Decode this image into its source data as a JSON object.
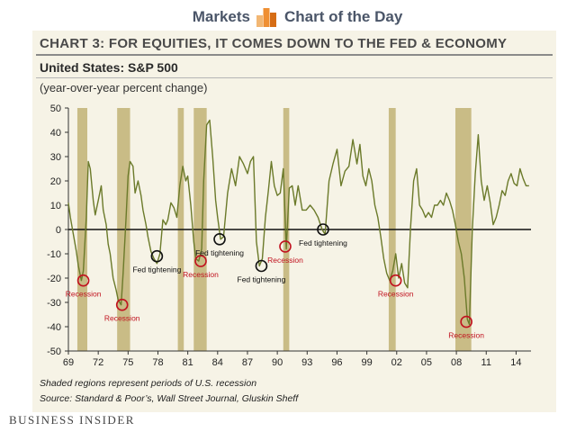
{
  "header": {
    "left_label": "Markets",
    "right_label": "Chart of the Day",
    "logo_icon": "bar-chart-logo-icon",
    "logo_colors": [
      "#f2b774",
      "#ef8f33",
      "#d66d15"
    ]
  },
  "footer": {
    "brand": "BUSINESS INSIDER"
  },
  "chart_data": {
    "type": "line",
    "title": "CHART 3: FOR EQUITIES, IT COMES DOWN TO THE FED & ECONOMY",
    "subtitle": "United States: S&P 500",
    "unit_note": "(year-over-year percent change)",
    "xlabel": "",
    "ylabel": "",
    "xlim": [
      1969,
      2015.5
    ],
    "ylim": [
      -50,
      50
    ],
    "grid": false,
    "zero_line": true,
    "x_ticks": [
      1969,
      1972,
      1975,
      1978,
      1981,
      1984,
      1987,
      1990,
      1993,
      1996,
      1999,
      2002,
      2005,
      2008,
      2011,
      2014
    ],
    "x_tick_labels": [
      "69",
      "72",
      "75",
      "78",
      "81",
      "84",
      "87",
      "90",
      "93",
      "96",
      "99",
      "02",
      "05",
      "08",
      "11",
      "14"
    ],
    "y_ticks": [
      50,
      40,
      30,
      20,
      10,
      0,
      -10,
      -20,
      -30,
      -40,
      -50
    ],
    "y_tick_labels": [
      "50",
      "40",
      "30",
      "20",
      "10",
      "0",
      "-10",
      "-20",
      "-30",
      "-40",
      "-50"
    ],
    "recessions": [
      [
        1969.9,
        1970.9
      ],
      [
        1973.9,
        1975.2
      ],
      [
        1980.0,
        1980.6
      ],
      [
        1981.6,
        1982.9
      ],
      [
        1990.6,
        1991.2
      ],
      [
        2001.2,
        2001.9
      ],
      [
        2007.9,
        2009.5
      ]
    ],
    "series": [
      {
        "color": "#6b7a2a",
        "x": [
          1969.0,
          1969.2,
          1969.5,
          1969.8,
          1970.0,
          1970.3,
          1970.5,
          1970.8,
          1971.0,
          1971.2,
          1971.5,
          1971.7,
          1972.0,
          1972.3,
          1972.5,
          1972.8,
          1973.0,
          1973.2,
          1973.5,
          1973.8,
          1974.0,
          1974.3,
          1974.5,
          1974.8,
          1975.0,
          1975.2,
          1975.5,
          1975.7,
          1976.0,
          1976.3,
          1976.5,
          1976.8,
          1977.0,
          1977.3,
          1977.6,
          1977.9,
          1978.2,
          1978.5,
          1978.8,
          1979.0,
          1979.3,
          1979.6,
          1979.9,
          1980.2,
          1980.5,
          1980.8,
          1981.0,
          1981.3,
          1981.6,
          1981.8,
          1982.1,
          1982.4,
          1982.6,
          1982.9,
          1983.2,
          1983.5,
          1983.8,
          1984.0,
          1984.3,
          1984.6,
          1985.0,
          1985.4,
          1985.8,
          1986.2,
          1986.6,
          1987.0,
          1987.3,
          1987.6,
          1987.9,
          1988.2,
          1988.5,
          1988.8,
          1989.1,
          1989.4,
          1989.7,
          1990.0,
          1990.3,
          1990.6,
          1990.9,
          1991.2,
          1991.5,
          1991.8,
          1992.1,
          1992.5,
          1992.9,
          1993.3,
          1993.7,
          1994.1,
          1994.5,
          1994.8,
          1995.2,
          1995.6,
          1996.0,
          1996.4,
          1996.8,
          1997.2,
          1997.6,
          1998.0,
          1998.3,
          1998.6,
          1998.9,
          1999.2,
          1999.5,
          1999.8,
          2000.1,
          2000.4,
          2000.7,
          2001.0,
          2001.3,
          2001.6,
          2001.9,
          2002.2,
          2002.5,
          2002.8,
          2003.1,
          2003.4,
          2003.7,
          2004.0,
          2004.3,
          2004.6,
          2004.9,
          2005.2,
          2005.5,
          2005.8,
          2006.1,
          2006.4,
          2006.7,
          2007.0,
          2007.3,
          2007.6,
          2007.9,
          2008.2,
          2008.5,
          2008.8,
          2009.1,
          2009.3,
          2009.6,
          2009.9,
          2010.2,
          2010.5,
          2010.8,
          2011.1,
          2011.4,
          2011.7,
          2012.0,
          2012.3,
          2012.6,
          2012.9,
          2013.2,
          2013.5,
          2013.8,
          2014.1,
          2014.4,
          2014.7,
          2015.0,
          2015.3
        ],
        "y": [
          11,
          5,
          -2,
          -9,
          -15,
          -21,
          -17,
          5,
          28,
          25,
          12,
          6,
          12,
          18,
          8,
          2,
          -6,
          -10,
          -20,
          -25,
          -29,
          -31,
          -18,
          5,
          22,
          28,
          26,
          15,
          20,
          14,
          8,
          2,
          -3,
          -9,
          -12,
          -14,
          -10,
          4,
          2,
          4,
          11,
          9,
          5,
          18,
          26,
          20,
          22,
          10,
          -5,
          -12,
          -13,
          -8,
          20,
          43,
          45,
          30,
          12,
          5,
          -4,
          -3,
          15,
          25,
          18,
          30,
          27,
          23,
          28,
          30,
          -5,
          -15,
          -12,
          5,
          16,
          28,
          18,
          14,
          15,
          25,
          -8,
          17,
          18,
          10,
          18,
          8,
          8,
          10,
          8,
          5,
          0,
          -2,
          20,
          27,
          33,
          18,
          24,
          26,
          37,
          27,
          35,
          22,
          18,
          25,
          20,
          10,
          5,
          -3,
          -12,
          -18,
          -21,
          -17,
          -10,
          -20,
          -14,
          -22,
          -24,
          1,
          20,
          25,
          10,
          8,
          5,
          7,
          5,
          10,
          10,
          12,
          10,
          15,
          12,
          8,
          2,
          -5,
          -10,
          -20,
          -37,
          -39,
          0,
          23,
          39,
          20,
          12,
          18,
          11,
          2,
          5,
          10,
          16,
          14,
          20,
          23,
          19,
          18,
          25,
          21,
          18,
          18
        ]
      }
    ],
    "annotations": [
      {
        "text": "Recession",
        "kind": "recession",
        "x": 1970.5,
        "y": -21
      },
      {
        "text": "Recession",
        "kind": "recession",
        "x": 1974.4,
        "y": -31
      },
      {
        "text": "Fed tightening",
        "kind": "fed",
        "x": 1977.9,
        "y": -11
      },
      {
        "text": "Recession",
        "kind": "recession",
        "x": 1982.3,
        "y": -13
      },
      {
        "text": "Fed tightening",
        "kind": "fed",
        "x": 1984.2,
        "y": -4
      },
      {
        "text": "Fed tightening",
        "kind": "fed",
        "x": 1988.4,
        "y": -15
      },
      {
        "text": "Recession",
        "kind": "recession",
        "x": 1990.8,
        "y": -7
      },
      {
        "text": "Fed tightening",
        "kind": "fed",
        "x": 1994.6,
        "y": 0
      },
      {
        "text": "Recession",
        "kind": "recession",
        "x": 2001.9,
        "y": -21
      },
      {
        "text": "Recession",
        "kind": "recession",
        "x": 2009.0,
        "y": -38
      }
    ],
    "notes": [
      "Shaded regions represent periods of U.S. recession",
      "Source: Standard & Poor’s, Wall Street Journal, Gluskin Sheff"
    ],
    "colors": {
      "recession_shade": "#c9bc86",
      "line": "#6b7a2a",
      "recession_marker": "#c1121f",
      "fed_marker": "#111111",
      "background": "#f6f3e6"
    }
  }
}
